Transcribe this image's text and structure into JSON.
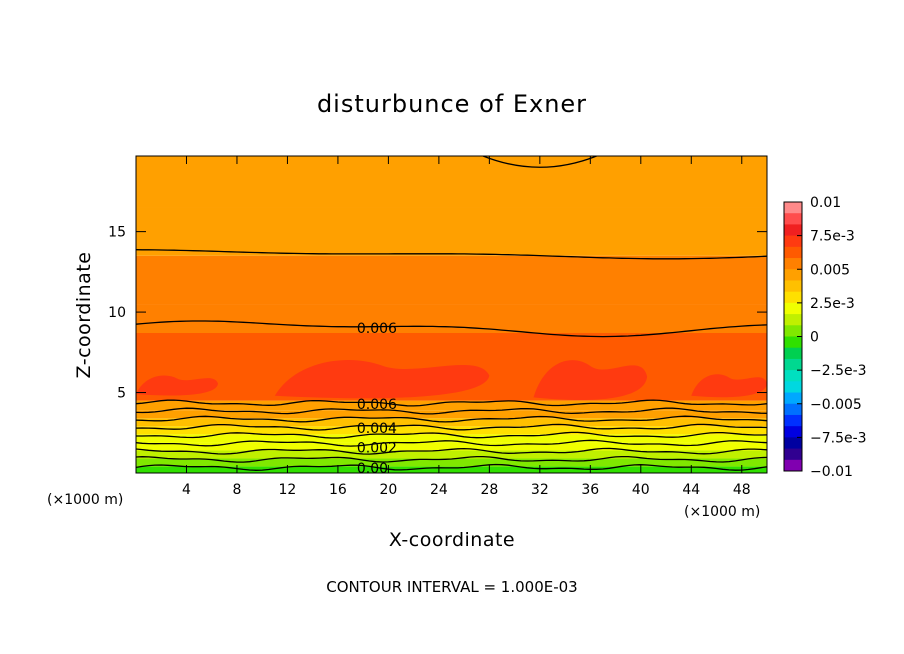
{
  "chart_data": {
    "type": "heatmap",
    "title": "disturbunce of Exner",
    "xlabel": "X-coordinate",
    "ylabel": "Z-coordinate",
    "x_unit": "(×1000 m)",
    "y_unit": "(×1000 m)",
    "xlim": [
      0,
      50
    ],
    "ylim": [
      0,
      19.7
    ],
    "x_ticks": [
      4,
      8,
      12,
      16,
      20,
      24,
      28,
      32,
      36,
      40,
      44,
      48
    ],
    "y_ticks": [
      5,
      10,
      15
    ],
    "colorbar": {
      "range": [
        -0.01,
        0.01
      ],
      "labels": [
        "0.01",
        "7.5e-3",
        "0.005",
        "2.5e-3",
        "0",
        "−2.5e-3",
        "−0.005",
        "−7.5e-3",
        "−0.01"
      ],
      "colors": [
        "#ff8a8a",
        "#ff4d4d",
        "#f02020",
        "#ff3a10",
        "#ff5a00",
        "#ff8000",
        "#ffa000",
        "#ffc000",
        "#ffe000",
        "#f0ff00",
        "#c0f000",
        "#80e800",
        "#30e000",
        "#00d050",
        "#00d890",
        "#00e0c0",
        "#00d8e0",
        "#00a8ff",
        "#0070ff",
        "#0030ff",
        "#0000e0",
        "#0000a0",
        "#300090",
        "#8000b0"
      ]
    },
    "contour_labels": [
      "0.006",
      "0.006",
      "0.004",
      "0.002",
      "0.00"
    ],
    "contour_interval": "CONTOUR INTERVAL = 1.000E-03",
    "bands": [
      {
        "z": [
          0,
          0.4
        ],
        "value": -0.0005
      },
      {
        "z": [
          0.4,
          0.9
        ],
        "value": 0.0005
      },
      {
        "z": [
          0.9,
          1.4
        ],
        "value": 0.0012
      },
      {
        "z": [
          1.4,
          1.9
        ],
        "value": 0.0018
      },
      {
        "z": [
          1.9,
          2.4
        ],
        "value": 0.0025
      },
      {
        "z": [
          2.4,
          2.9
        ],
        "value": 0.003
      },
      {
        "z": [
          2.9,
          3.4
        ],
        "value": 0.0036
      },
      {
        "z": [
          3.4,
          3.9
        ],
        "value": 0.0042
      },
      {
        "z": [
          3.9,
          4.5
        ],
        "value": 0.005
      },
      {
        "z": [
          4.5,
          8.7
        ],
        "value": 0.0062
      },
      {
        "z": [
          8.7,
          10.5
        ],
        "value": 0.0058
      },
      {
        "z": [
          10.5,
          13.5
        ],
        "value": 0.0054
      },
      {
        "z": [
          13.5,
          16.5
        ],
        "value": 0.0048
      },
      {
        "z": [
          16.5,
          19.7
        ],
        "value": 0.0042
      }
    ],
    "patches": [
      {
        "x": [
          0,
          6.5
        ],
        "z": [
          4.9,
          6.2
        ],
        "value": 0.0068
      },
      {
        "x": [
          11,
          28
        ],
        "z": [
          4.8,
          7.3
        ],
        "value": 0.0068
      },
      {
        "x": [
          31.5,
          40.5
        ],
        "z": [
          4.7,
          7.3
        ],
        "value": 0.0068
      },
      {
        "x": [
          44,
          50
        ],
        "z": [
          4.8,
          6.3
        ],
        "value": 0.0068
      }
    ]
  }
}
